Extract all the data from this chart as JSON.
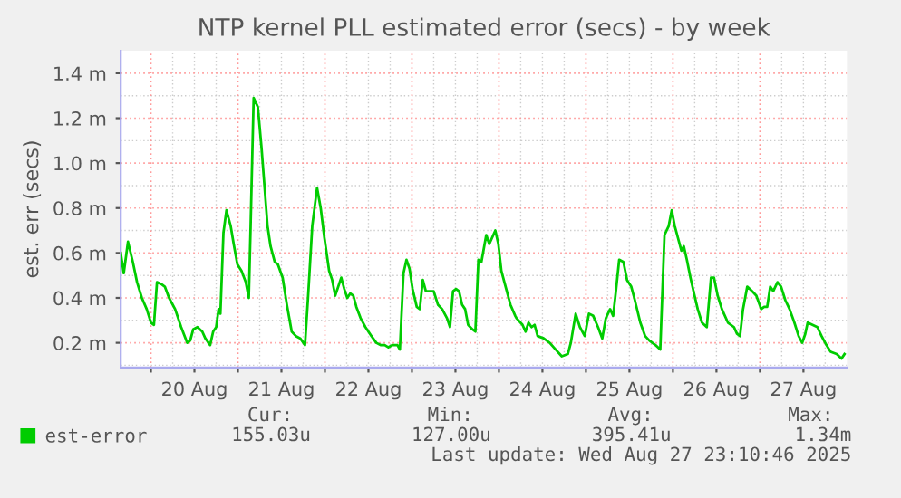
{
  "chart_data": {
    "type": "line",
    "title": "NTP kernel PLL estimated error (secs) - by week",
    "ylabel": "est. err (secs)",
    "x": [
      "2025-08-19T15:40",
      "2025-08-19T16:30",
      "2025-08-19T17:40",
      "2025-08-19T19:00",
      "2025-08-19T20:10",
      "2025-08-19T21:30",
      "2025-08-19T22:50",
      "2025-08-20T00:00",
      "2025-08-20T00:50",
      "2025-08-20T01:40",
      "2025-08-20T03:00",
      "2025-08-20T03:50",
      "2025-08-20T05:00",
      "2025-08-20T06:40",
      "2025-08-20T08:20",
      "2025-08-20T10:00",
      "2025-08-20T10:50",
      "2025-08-20T11:40",
      "2025-08-20T12:50",
      "2025-08-20T14:10",
      "2025-08-20T15:00",
      "2025-08-20T16:20",
      "2025-08-20T17:10",
      "2025-08-20T18:00",
      "2025-08-20T18:40",
      "2025-08-20T19:10",
      "2025-08-20T20:00",
      "2025-08-20T20:50",
      "2025-08-20T22:00",
      "2025-08-20T22:50",
      "2025-08-20T23:50",
      "2025-08-21T01:00",
      "2025-08-21T02:10",
      "2025-08-21T03:00",
      "2025-08-21T03:30",
      "2025-08-21T04:20",
      "2025-08-21T05:30",
      "2025-08-21T06:30",
      "2025-08-21T07:10",
      "2025-08-21T08:10",
      "2025-08-21T09:00",
      "2025-08-21T10:10",
      "2025-08-21T11:00",
      "2025-08-21T12:20",
      "2025-08-21T13:30",
      "2025-08-21T14:50",
      "2025-08-21T16:00",
      "2025-08-21T17:10",
      "2025-08-21T18:30",
      "2025-08-21T19:20",
      "2025-08-21T20:30",
      "2025-08-21T21:50",
      "2025-08-21T22:50",
      "2025-08-21T23:50",
      "2025-08-22T01:10",
      "2025-08-22T02:00",
      "2025-08-22T02:50",
      "2025-08-22T03:40",
      "2025-08-22T04:30",
      "2025-08-22T05:20",
      "2025-08-22T06:10",
      "2025-08-22T07:00",
      "2025-08-22T07:50",
      "2025-08-22T08:40",
      "2025-08-22T09:50",
      "2025-08-22T11:10",
      "2025-08-22T12:50",
      "2025-08-22T14:10",
      "2025-08-22T15:20",
      "2025-08-22T16:30",
      "2025-08-22T17:30",
      "2025-08-22T18:40",
      "2025-08-22T20:00",
      "2025-08-22T20:40",
      "2025-08-22T21:40",
      "2025-08-22T22:30",
      "2025-08-22T23:20",
      "2025-08-23T00:10",
      "2025-08-23T01:20",
      "2025-08-23T02:10",
      "2025-08-23T03:00",
      "2025-08-23T03:50",
      "2025-08-23T05:00",
      "2025-08-23T06:00",
      "2025-08-23T07:10",
      "2025-08-23T08:20",
      "2025-08-23T09:40",
      "2025-08-23T10:30",
      "2025-08-23T11:20",
      "2025-08-23T12:10",
      "2025-08-23T13:00",
      "2025-08-23T13:50",
      "2025-08-23T14:40",
      "2025-08-23T15:30",
      "2025-08-23T16:40",
      "2025-08-23T17:30",
      "2025-08-23T18:20",
      "2025-08-23T19:10",
      "2025-08-23T20:30",
      "2025-08-23T21:20",
      "2025-08-23T22:10",
      "2025-08-23T23:00",
      "2025-08-23T23:50",
      "2025-08-24T00:40",
      "2025-08-24T01:30",
      "2025-08-24T03:10",
      "2025-08-24T04:30",
      "2025-08-24T04:50",
      "2025-08-24T06:30",
      "2025-08-24T07:20",
      "2025-08-24T08:10",
      "2025-08-24T09:00",
      "2025-08-24T09:50",
      "2025-08-24T10:40",
      "2025-08-24T12:20",
      "2025-08-24T14:00",
      "2025-08-24T15:40",
      "2025-08-24T17:20",
      "2025-08-24T19:00",
      "2025-08-24T19:50",
      "2025-08-24T21:10",
      "2025-08-24T22:20",
      "2025-08-24T23:40",
      "2025-08-25T00:50",
      "2025-08-25T02:00",
      "2025-08-25T03:20",
      "2025-08-25T04:30",
      "2025-08-25T05:30",
      "2025-08-25T06:40",
      "2025-08-25T07:30",
      "2025-08-25T08:20",
      "2025-08-25T09:10",
      "2025-08-25T10:20",
      "2025-08-25T11:20",
      "2025-08-25T12:30",
      "2025-08-25T13:20",
      "2025-08-25T15:00",
      "2025-08-25T16:20",
      "2025-08-25T17:30",
      "2025-08-25T19:10",
      "2025-08-25T20:30",
      "2025-08-25T21:40",
      "2025-08-25T22:50",
      "2025-08-25T23:40",
      "2025-08-26T00:30",
      "2025-08-26T01:20",
      "2025-08-26T02:20",
      "2025-08-26T03:00",
      "2025-08-26T03:50",
      "2025-08-26T04:50",
      "2025-08-26T05:40",
      "2025-08-26T06:50",
      "2025-08-26T08:00",
      "2025-08-26T09:20",
      "2025-08-26T10:30",
      "2025-08-26T11:20",
      "2025-08-26T12:20",
      "2025-08-26T13:30",
      "2025-08-26T15:10",
      "2025-08-26T16:50",
      "2025-08-26T17:40",
      "2025-08-26T18:30",
      "2025-08-26T19:20",
      "2025-08-26T20:30",
      "2025-08-26T21:50",
      "2025-08-26T23:00",
      "2025-08-27T00:20",
      "2025-08-27T01:10",
      "2025-08-27T02:00",
      "2025-08-27T02:50",
      "2025-08-27T03:40",
      "2025-08-27T04:50",
      "2025-08-27T05:50",
      "2025-08-27T07:00",
      "2025-08-27T08:10",
      "2025-08-27T09:30",
      "2025-08-27T10:40",
      "2025-08-27T11:40",
      "2025-08-27T12:30",
      "2025-08-27T13:10",
      "2025-08-27T14:30",
      "2025-08-27T15:50",
      "2025-08-27T17:00",
      "2025-08-27T18:20",
      "2025-08-27T19:30",
      "2025-08-27T21:10",
      "2025-08-27T22:30",
      "2025-08-27T23:20"
    ],
    "series": [
      {
        "name": "est-error",
        "color": "#00cc00",
        "values": [
          0.6,
          0.51,
          0.65,
          0.56,
          0.47,
          0.4,
          0.35,
          0.29,
          0.28,
          0.47,
          0.46,
          0.45,
          0.4,
          0.35,
          0.27,
          0.2,
          0.21,
          0.26,
          0.27,
          0.25,
          0.22,
          0.19,
          0.25,
          0.27,
          0.35,
          0.33,
          0.69,
          0.79,
          0.72,
          0.64,
          0.55,
          0.52,
          0.47,
          0.4,
          0.72,
          1.29,
          1.25,
          1.07,
          0.93,
          0.72,
          0.63,
          0.56,
          0.55,
          0.49,
          0.37,
          0.25,
          0.23,
          0.22,
          0.19,
          0.4,
          0.72,
          0.89,
          0.8,
          0.67,
          0.52,
          0.48,
          0.41,
          0.45,
          0.49,
          0.44,
          0.4,
          0.42,
          0.41,
          0.36,
          0.31,
          0.27,
          0.23,
          0.2,
          0.19,
          0.19,
          0.18,
          0.19,
          0.19,
          0.17,
          0.51,
          0.57,
          0.53,
          0.44,
          0.36,
          0.35,
          0.48,
          0.43,
          0.43,
          0.43,
          0.37,
          0.35,
          0.31,
          0.27,
          0.43,
          0.44,
          0.43,
          0.37,
          0.35,
          0.28,
          0.26,
          0.25,
          0.57,
          0.56,
          0.68,
          0.64,
          0.67,
          0.7,
          0.64,
          0.52,
          0.47,
          0.37,
          0.32,
          0.31,
          0.28,
          0.25,
          0.29,
          0.27,
          0.28,
          0.23,
          0.22,
          0.2,
          0.17,
          0.14,
          0.15,
          0.2,
          0.33,
          0.27,
          0.23,
          0.33,
          0.32,
          0.27,
          0.22,
          0.31,
          0.35,
          0.32,
          0.44,
          0.57,
          0.56,
          0.48,
          0.45,
          0.4,
          0.29,
          0.23,
          0.21,
          0.19,
          0.17,
          0.68,
          0.72,
          0.79,
          0.72,
          0.67,
          0.61,
          0.63,
          0.57,
          0.49,
          0.43,
          0.35,
          0.29,
          0.27,
          0.49,
          0.49,
          0.41,
          0.35,
          0.29,
          0.27,
          0.24,
          0.23,
          0.35,
          0.45,
          0.43,
          0.41,
          0.35,
          0.36,
          0.36,
          0.45,
          0.43,
          0.47,
          0.45,
          0.39,
          0.35,
          0.29,
          0.23,
          0.2,
          0.24,
          0.29,
          0.28,
          0.27,
          0.23,
          0.19,
          0.16,
          0.15,
          0.13,
          0.15
        ]
      }
    ],
    "xlim": [
      "2025-08-19T15:40",
      "2025-08-28T00:00"
    ],
    "xticks": [
      {
        "value": "2025-08-20T00:00",
        "label": null
      },
      {
        "value": "2025-08-21T00:00",
        "label": null
      },
      {
        "value": "2025-08-22T00:00",
        "label": null
      },
      {
        "value": "2025-08-23T00:00",
        "label": null
      },
      {
        "value": "2025-08-24T00:00",
        "label": null
      },
      {
        "value": "2025-08-25T00:00",
        "label": null
      },
      {
        "value": "2025-08-26T00:00",
        "label": null
      },
      {
        "value": "2025-08-27T00:00",
        "label": null
      },
      {
        "value": "2025-08-20T12:00",
        "label": "20 Aug"
      },
      {
        "value": "2025-08-21T12:00",
        "label": "21 Aug"
      },
      {
        "value": "2025-08-22T12:00",
        "label": "22 Aug"
      },
      {
        "value": "2025-08-23T12:00",
        "label": "23 Aug"
      },
      {
        "value": "2025-08-24T12:00",
        "label": "24 Aug"
      },
      {
        "value": "2025-08-25T12:00",
        "label": "25 Aug"
      },
      {
        "value": "2025-08-26T12:00",
        "label": "26 Aug"
      },
      {
        "value": "2025-08-27T12:00",
        "label": "27 Aug"
      }
    ],
    "ylim": [
      0.09,
      1.5
    ],
    "yticks": [
      {
        "value": 0.2,
        "label": "0.2 m"
      },
      {
        "value": 0.4,
        "label": "0.4 m"
      },
      {
        "value": 0.6,
        "label": "0.6 m"
      },
      {
        "value": 0.8,
        "label": "0.8 m"
      },
      {
        "value": 1.0,
        "label": "1.0 m"
      },
      {
        "value": 1.2,
        "label": "1.2 m"
      },
      {
        "value": 1.4,
        "label": "1.4 m"
      }
    ],
    "grid": true,
    "legend": "bottom left",
    "annotations": [
      "Cur:",
      "Min:",
      "Avg:",
      "Max:",
      "155.03u",
      "127.00u",
      "395.41u",
      "1.34m",
      "Last update: Wed Aug 27 23:10:46 2025"
    ]
  }
}
